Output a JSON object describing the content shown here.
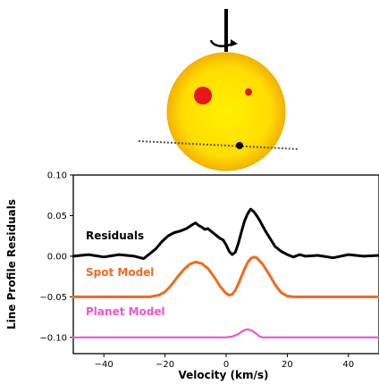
{
  "star_panel": {
    "star_color": "#ffdd00",
    "star_edge_color": "#f2b500",
    "spot_color": "#e8151a",
    "planet_color": "#000000",
    "transit_chord_color": "#555555",
    "rotation_axis_color": "#000000"
  },
  "chart_data": {
    "type": "line",
    "xlabel": "Velocity (km/s)",
    "ylabel": "Line Profile Residuals",
    "xlim": [
      -50,
      50
    ],
    "ylim": [
      -0.12,
      0.1
    ],
    "xticks": [
      -40,
      -20,
      0,
      20,
      40
    ],
    "xtick_labels": [
      "−40",
      "−20",
      "0",
      "20",
      "40"
    ],
    "yticks": [
      0.1,
      0.05,
      0.0,
      -0.05,
      -0.1
    ],
    "ytick_labels": [
      "0.10",
      "0.05",
      "0.00",
      "−0.05",
      "−0.10"
    ],
    "grid": false,
    "series": [
      {
        "name": "Residuals",
        "color": "#000000",
        "x": [
          -50,
          -45,
          -40,
          -35,
          -30,
          -27,
          -25,
          -23,
          -21,
          -19,
          -17,
          -15,
          -13,
          -11,
          -10,
          -9,
          -8,
          -7,
          -6,
          -5,
          -4,
          -3,
          -2,
          -1,
          0,
          1,
          2,
          3,
          4,
          5,
          6,
          7,
          8,
          9,
          10,
          11,
          12,
          13,
          14,
          15,
          16,
          18,
          20,
          22,
          24,
          26,
          30,
          35,
          40,
          45,
          50
        ],
        "y": [
          0.0,
          0.002,
          -0.001,
          0.002,
          0.0,
          -0.003,
          0.003,
          0.009,
          0.018,
          0.025,
          0.029,
          0.031,
          0.034,
          0.039,
          0.041,
          0.038,
          0.036,
          0.033,
          0.034,
          0.031,
          0.028,
          0.025,
          0.022,
          0.02,
          0.014,
          0.006,
          0.002,
          0.005,
          0.016,
          0.03,
          0.043,
          0.052,
          0.058,
          0.055,
          0.05,
          0.044,
          0.037,
          0.03,
          0.024,
          0.018,
          0.012,
          0.006,
          0.002,
          -0.001,
          0.002,
          0.0,
          0.001,
          -0.002,
          0.002,
          0.0,
          0.001
        ]
      },
      {
        "name": "Spot Model",
        "color": "#f26a1b",
        "x": [
          -50,
          -40,
          -30,
          -25,
          -22,
          -20,
          -18,
          -16,
          -14,
          -12,
          -10,
          -8,
          -6,
          -4,
          -2,
          0,
          1,
          2,
          3,
          4,
          5,
          6,
          7,
          8,
          9,
          10,
          12,
          14,
          16,
          18,
          20,
          22,
          25,
          30,
          40,
          50
        ],
        "y": [
          -0.05,
          -0.05,
          -0.05,
          -0.05,
          -0.048,
          -0.044,
          -0.036,
          -0.026,
          -0.017,
          -0.01,
          -0.007,
          -0.009,
          -0.015,
          -0.025,
          -0.037,
          -0.046,
          -0.048,
          -0.047,
          -0.042,
          -0.034,
          -0.025,
          -0.016,
          -0.008,
          -0.003,
          -0.001,
          -0.002,
          -0.01,
          -0.022,
          -0.035,
          -0.045,
          -0.049,
          -0.05,
          -0.05,
          -0.05,
          -0.05,
          -0.05
        ]
      },
      {
        "name": "Planet Model",
        "color": "#ee55cc",
        "x": [
          -50,
          -20,
          0,
          2,
          4,
          5,
          6,
          7,
          8,
          9,
          10,
          11,
          12,
          14,
          20,
          50
        ],
        "y": [
          -0.1,
          -0.1,
          -0.1,
          -0.099,
          -0.096,
          -0.093,
          -0.091,
          -0.09,
          -0.091,
          -0.093,
          -0.096,
          -0.099,
          -0.1,
          -0.1,
          -0.1,
          -0.1
        ]
      }
    ]
  }
}
